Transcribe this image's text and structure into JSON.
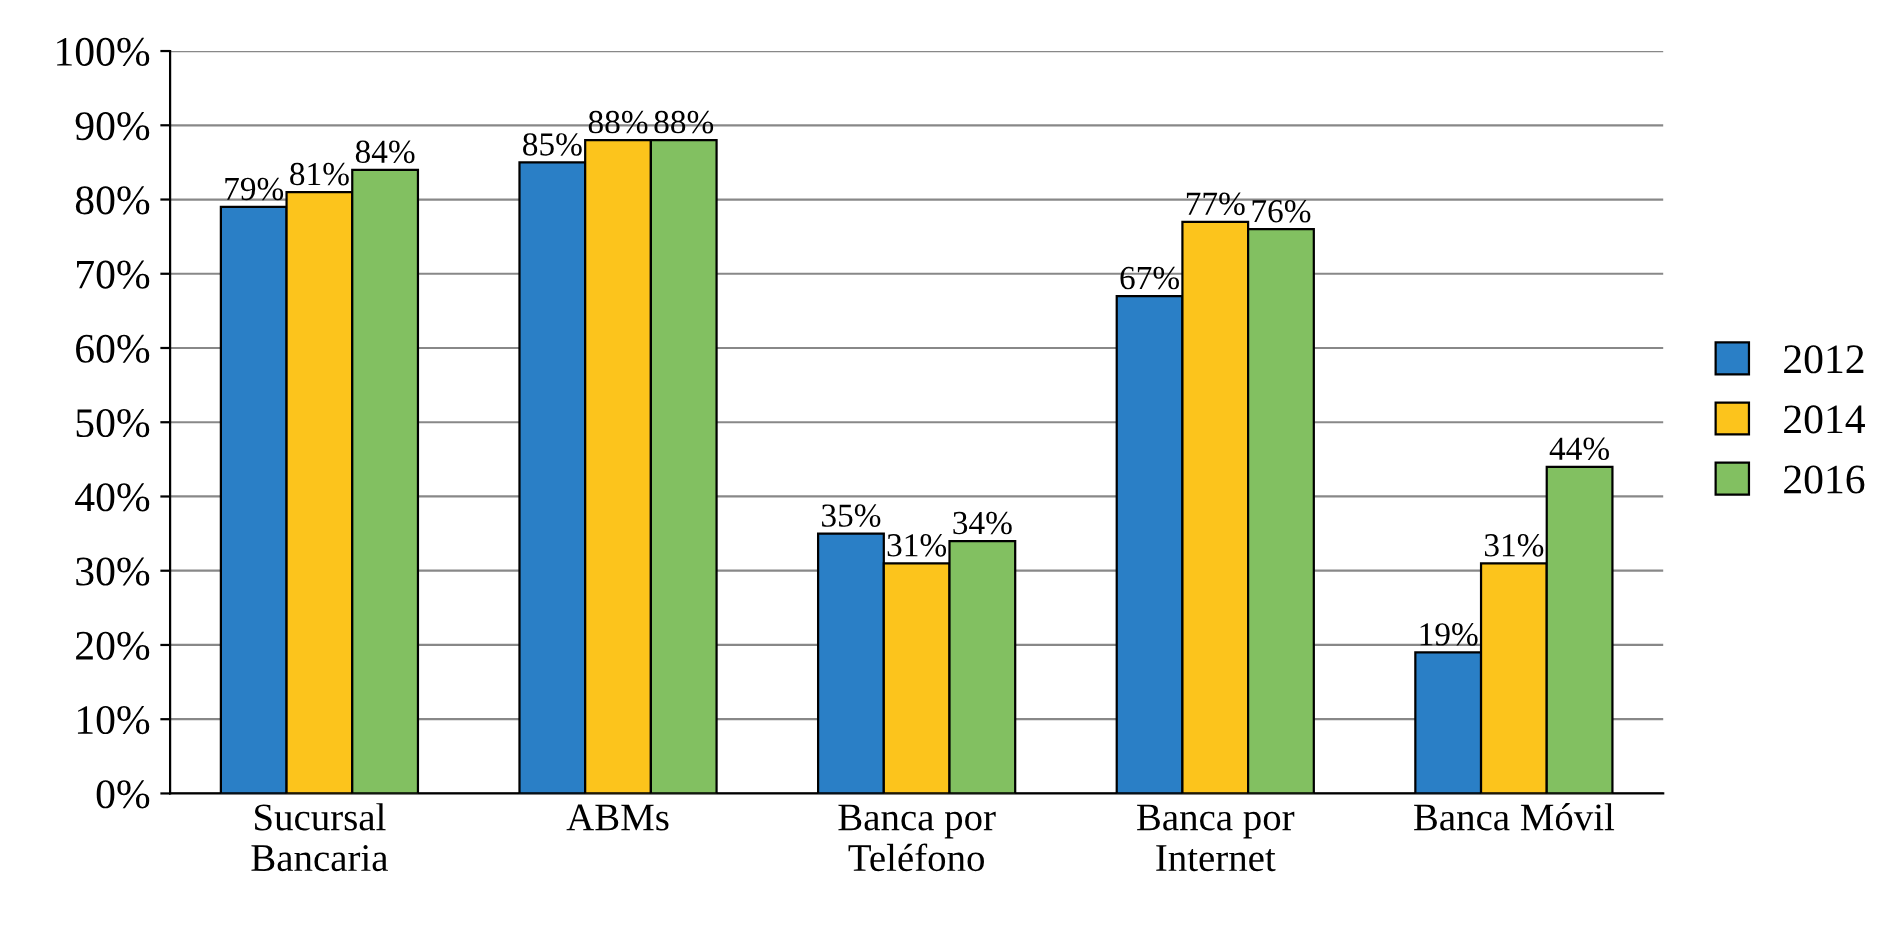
{
  "chart_data": {
    "type": "bar",
    "categories": [
      "Sucursal\nBancaria",
      "ABMs",
      "Banca por\nTeléfono",
      "Banca por\nInternet",
      "Banca Móvil"
    ],
    "series": [
      {
        "name": "2012",
        "color": "#2a7fc6",
        "values": [
          79,
          85,
          35,
          67,
          19
        ],
        "value_labels": [
          "79%",
          "85%",
          "35%",
          "67%",
          "19%"
        ]
      },
      {
        "name": "2014",
        "color": "#fcc41c",
        "values": [
          81,
          88,
          31,
          77,
          31
        ],
        "value_labels": [
          "81%",
          "88%",
          "31%",
          "77%",
          "31%"
        ]
      },
      {
        "name": "2016",
        "color": "#82c061",
        "values": [
          84,
          88,
          34,
          76,
          44
        ],
        "value_labels": [
          "84%",
          "88%",
          "34%",
          "76%",
          "44%"
        ]
      }
    ],
    "ylim": [
      0,
      100
    ],
    "yticks": [
      {
        "value": 0,
        "label": "0%"
      },
      {
        "value": 10,
        "label": "10%"
      },
      {
        "value": 20,
        "label": "20%"
      },
      {
        "value": 30,
        "label": "30%"
      },
      {
        "value": 40,
        "label": "40%"
      },
      {
        "value": 50,
        "label": "50%"
      },
      {
        "value": 60,
        "label": "60%"
      },
      {
        "value": 70,
        "label": "70%"
      },
      {
        "value": 80,
        "label": "80%"
      },
      {
        "value": 90,
        "label": "90%"
      },
      {
        "value": 100,
        "label": "100%"
      }
    ],
    "grid": "y",
    "legend": "right"
  }
}
